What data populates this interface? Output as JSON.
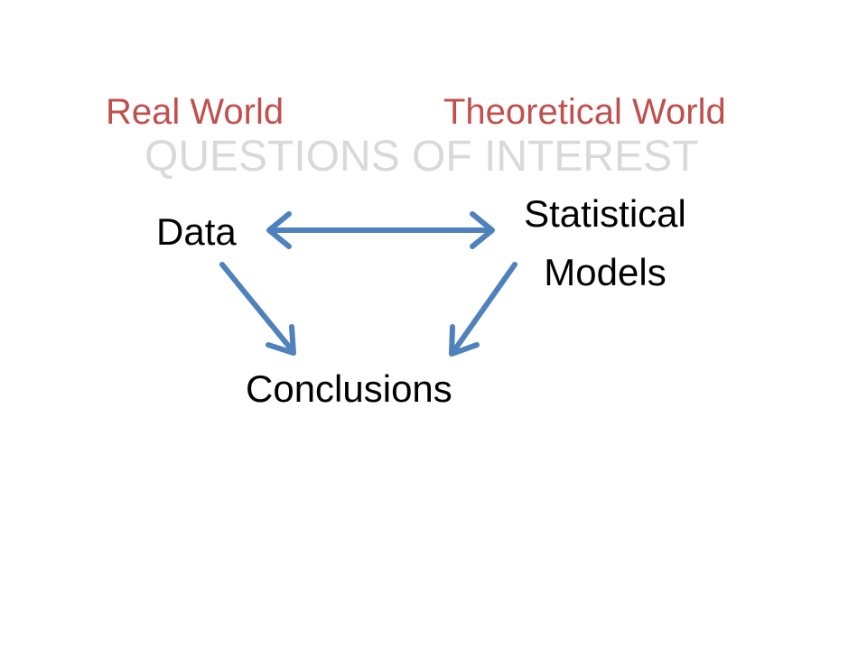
{
  "headings": {
    "real_world": "Real World",
    "theoretical_world": "Theoretical  World"
  },
  "watermark": "QUESTIONS OF INTEREST",
  "nodes": {
    "data": "Data",
    "models_line1": "Statistical",
    "models_line2": "Models",
    "conclusions": "Conclusions"
  },
  "colors": {
    "heading": "#c0504d",
    "watermark": "#d9d9d9",
    "arrow": "#4f81bd",
    "text": "#000000"
  }
}
